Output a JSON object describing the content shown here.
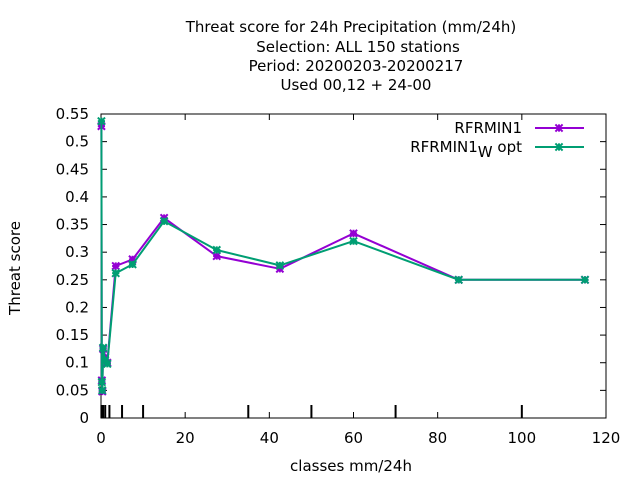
{
  "chart_data": {
    "type": "line",
    "title_lines": [
      "Threat score  for 24h Precipitation (mm/24h)",
      "Selection: ALL    150 stations",
      "Period: 20200203-20200217",
      "Used  00,12  + 24-00"
    ],
    "xlabel": "classes mm/24h",
    "ylabel": "Threat score",
    "xlim": [
      0,
      120
    ],
    "ylim": [
      0,
      0.55
    ],
    "x_ticks": [
      "0",
      "20",
      "40",
      "60",
      "80",
      "100",
      "120"
    ],
    "y_ticks": [
      "0",
      "0.05",
      "0.1",
      "0.15",
      "0.2",
      "0.25",
      "0.3",
      "0.35",
      "0.4",
      "0.45",
      "0.5",
      "0.55"
    ],
    "grid": false,
    "legend_position": "top-right",
    "class_marks": [
      0.1,
      0.2,
      0.3,
      0.5,
      1,
      2,
      5,
      10,
      35,
      50,
      70,
      100
    ],
    "series": [
      {
        "name": "RFRMIN1",
        "color": "#9400d3",
        "marker": "plus-star",
        "x": [
          0.1,
          0.2,
          0.3,
          0.5,
          1.0,
          1.5,
          3.5,
          7.5,
          15,
          27.5,
          42.5,
          60,
          85,
          115
        ],
        "y": [
          0.528,
          0.068,
          0.048,
          0.125,
          0.11,
          0.1,
          0.275,
          0.287,
          0.362,
          0.293,
          0.27,
          0.334,
          0.25,
          0.25
        ]
      },
      {
        "name": "RFRMIN1",
        "name_subscript": "W",
        "name_suffix": " opt",
        "color": "#009e73",
        "marker": "plus-star",
        "x": [
          0.1,
          0.2,
          0.3,
          0.5,
          1.0,
          1.5,
          3.5,
          7.5,
          15,
          27.5,
          42.5,
          60,
          85,
          115
        ],
        "y": [
          0.537,
          0.065,
          0.05,
          0.127,
          0.105,
          0.098,
          0.262,
          0.278,
          0.356,
          0.304,
          0.276,
          0.32,
          0.25,
          0.25
        ]
      }
    ]
  }
}
